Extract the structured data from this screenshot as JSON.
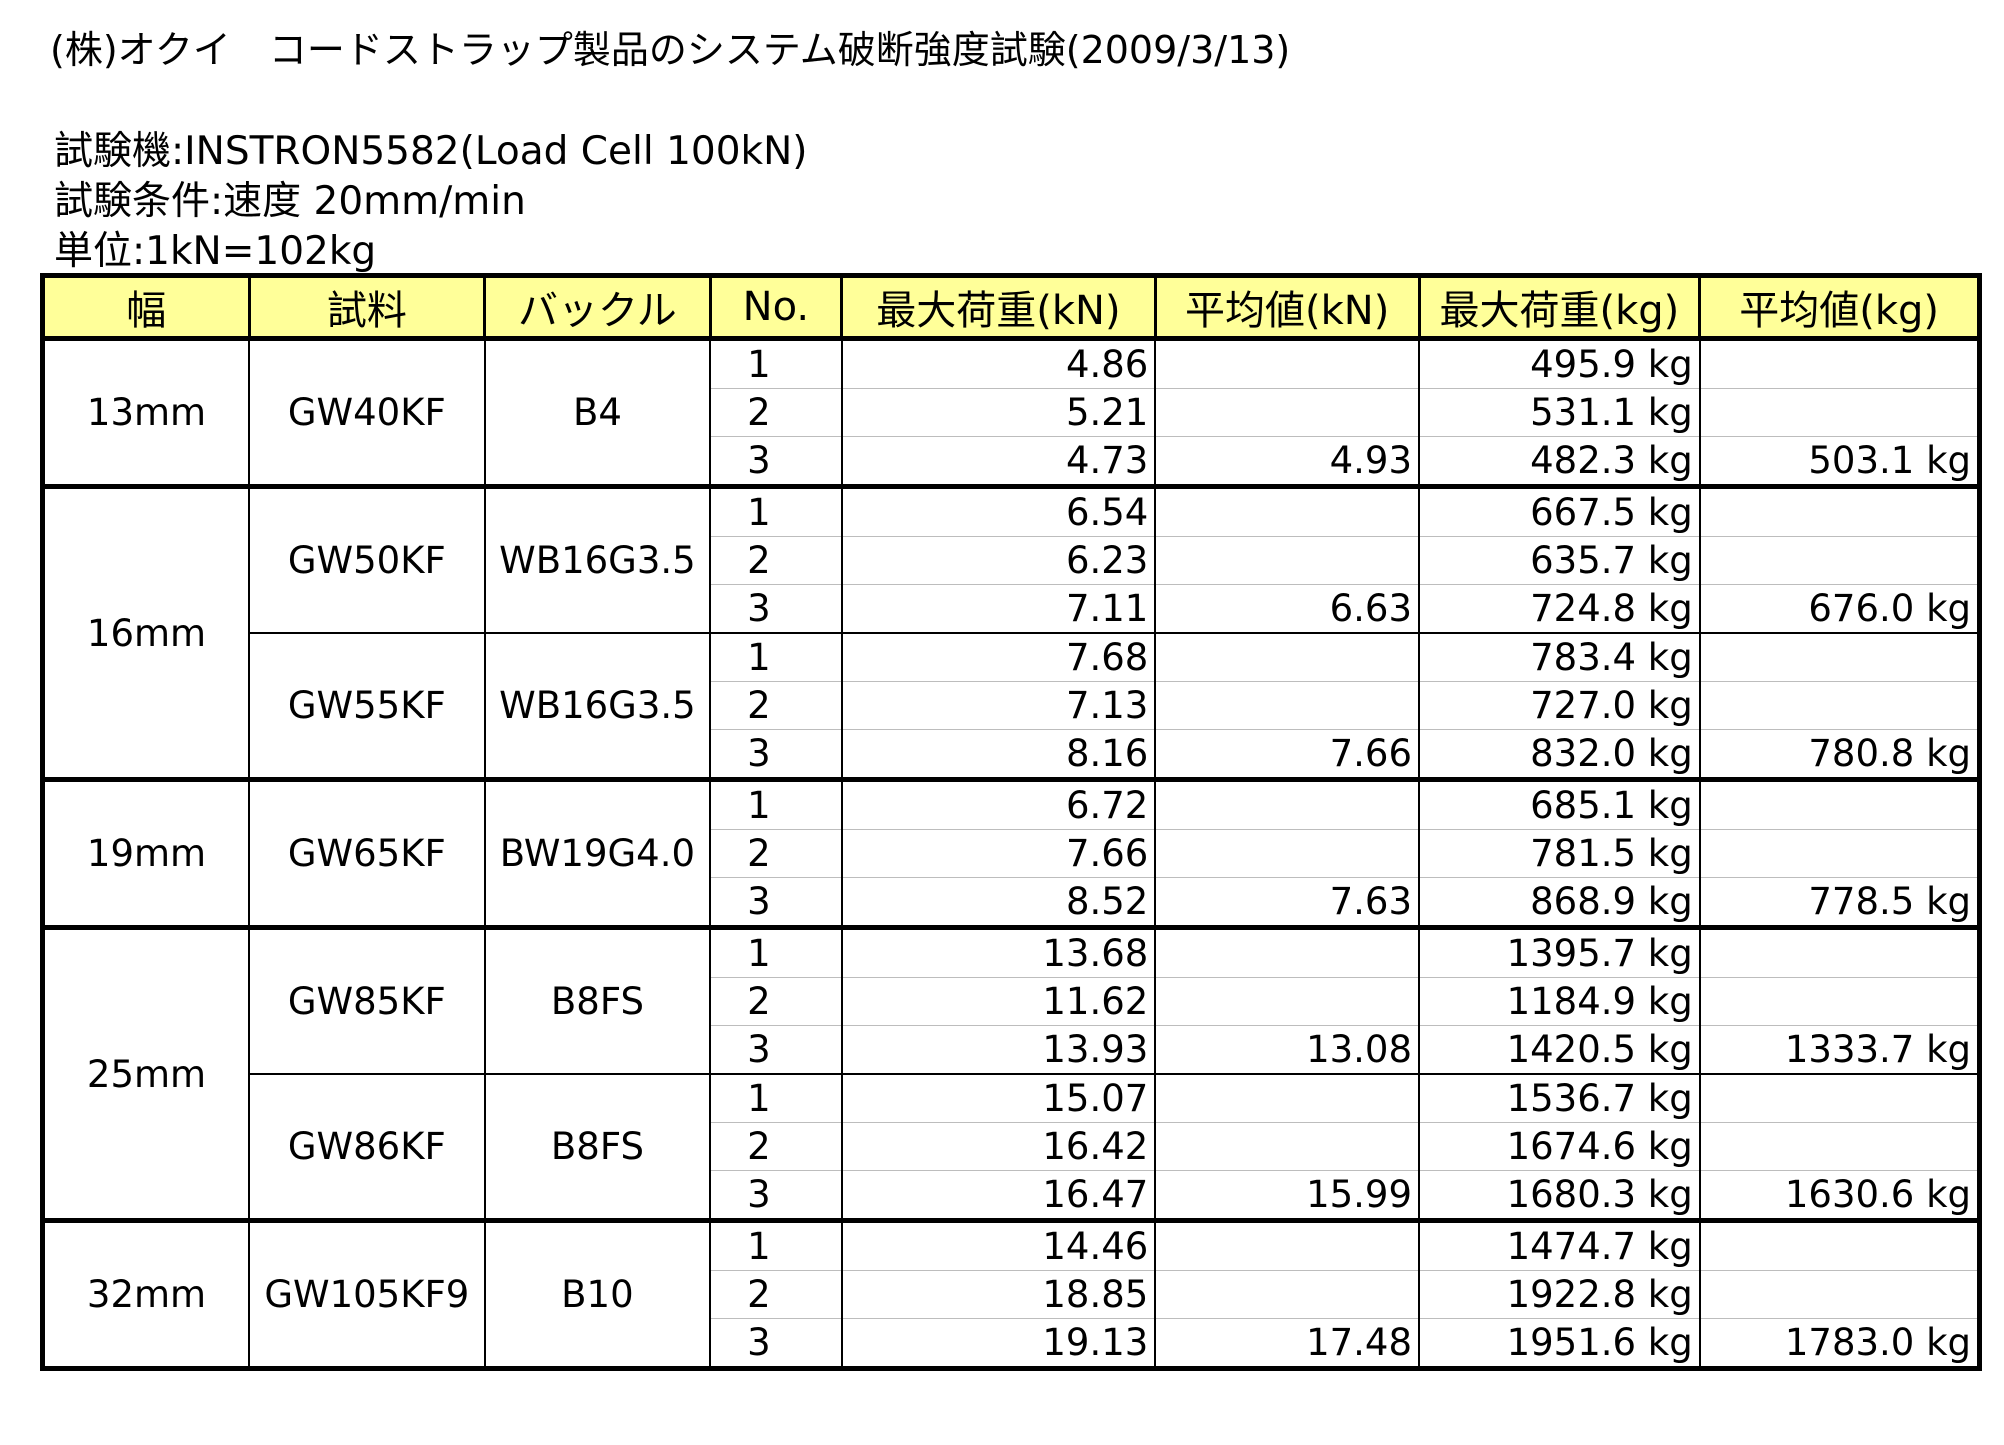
{
  "title": "(株)オクイ　コードストラップ製品のシステム破断強度試験(2009/3/13)",
  "info": {
    "machine": "試験機:INSTRON5582(Load Cell 100kN)",
    "condition": "試験条件:速度 20mm/min",
    "unit": "単位:1kN=102kg"
  },
  "table": {
    "headers": [
      "幅",
      "試料",
      "バックル",
      "No.",
      "最大荷重(kN)",
      "平均値(kN)",
      "最大荷重(kg)",
      "平均値(kg)"
    ],
    "sections": [
      {
        "width": "13mm",
        "groups": [
          {
            "sample": "GW40KF",
            "buckle": "B4",
            "trials": [
              {
                "no": "1",
                "kn": "4.86",
                "kg": "495.9 kg"
              },
              {
                "no": "2",
                "kn": "5.21",
                "kg": "531.1 kg"
              },
              {
                "no": "3",
                "kn": "4.73",
                "kg": "482.3 kg"
              }
            ],
            "avg_kn": "4.93",
            "avg_kg": "503.1 kg"
          }
        ]
      },
      {
        "width": "16mm",
        "groups": [
          {
            "sample": "GW50KF",
            "buckle": "WB16G3.5",
            "trials": [
              {
                "no": "1",
                "kn": "6.54",
                "kg": "667.5 kg"
              },
              {
                "no": "2",
                "kn": "6.23",
                "kg": "635.7 kg"
              },
              {
                "no": "3",
                "kn": "7.11",
                "kg": "724.8 kg"
              }
            ],
            "avg_kn": "6.63",
            "avg_kg": "676.0 kg"
          },
          {
            "sample": "GW55KF",
            "buckle": "WB16G3.5",
            "trials": [
              {
                "no": "1",
                "kn": "7.68",
                "kg": "783.4 kg"
              },
              {
                "no": "2",
                "kn": "7.13",
                "kg": "727.0 kg"
              },
              {
                "no": "3",
                "kn": "8.16",
                "kg": "832.0 kg"
              }
            ],
            "avg_kn": "7.66",
            "avg_kg": "780.8 kg"
          }
        ]
      },
      {
        "width": "19mm",
        "groups": [
          {
            "sample": "GW65KF",
            "buckle": "BW19G4.0",
            "trials": [
              {
                "no": "1",
                "kn": "6.72",
                "kg": "685.1 kg"
              },
              {
                "no": "2",
                "kn": "7.66",
                "kg": "781.5 kg"
              },
              {
                "no": "3",
                "kn": "8.52",
                "kg": "868.9 kg"
              }
            ],
            "avg_kn": "7.63",
            "avg_kg": "778.5 kg"
          }
        ]
      },
      {
        "width": "25mm",
        "groups": [
          {
            "sample": "GW85KF",
            "buckle": "B8FS",
            "trials": [
              {
                "no": "1",
                "kn": "13.68",
                "kg": "1395.7 kg"
              },
              {
                "no": "2",
                "kn": "11.62",
                "kg": "1184.9 kg"
              },
              {
                "no": "3",
                "kn": "13.93",
                "kg": "1420.5 kg"
              }
            ],
            "avg_kn": "13.08",
            "avg_kg": "1333.7 kg"
          },
          {
            "sample": "GW86KF",
            "buckle": "B8FS",
            "trials": [
              {
                "no": "1",
                "kn": "15.07",
                "kg": "1536.7 kg"
              },
              {
                "no": "2",
                "kn": "16.42",
                "kg": "1674.6 kg"
              },
              {
                "no": "3",
                "kn": "16.47",
                "kg": "1680.3 kg"
              }
            ],
            "avg_kn": "15.99",
            "avg_kg": "1630.6 kg"
          }
        ]
      },
      {
        "width": "32mm",
        "groups": [
          {
            "sample": "GW105KF9",
            "buckle": "B10",
            "trials": [
              {
                "no": "1",
                "kn": "14.46",
                "kg": "1474.7 kg"
              },
              {
                "no": "2",
                "kn": "18.85",
                "kg": "1922.8 kg"
              },
              {
                "no": "3",
                "kn": "19.13",
                "kg": "1951.6 kg"
              }
            ],
            "avg_kn": "17.48",
            "avg_kg": "1783.0 kg"
          }
        ]
      }
    ]
  }
}
